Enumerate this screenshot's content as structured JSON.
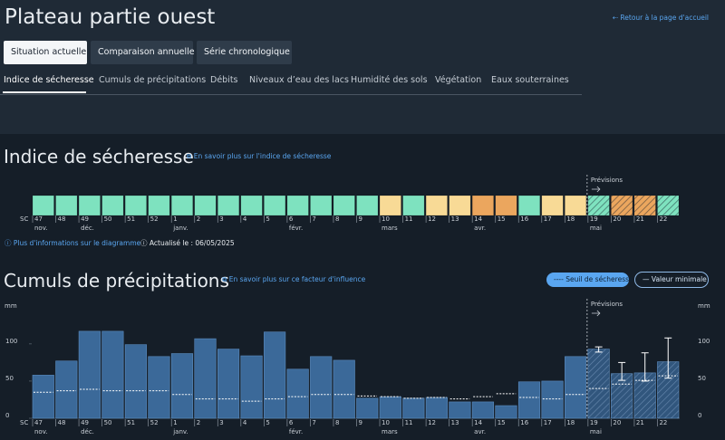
{
  "header": {
    "title": "Plateau partie ouest",
    "back_link": "Retour à la page d'accueil"
  },
  "view_tabs": [
    "Situation actuelle",
    "Comparaison annuelle",
    "Série chronologique"
  ],
  "topic_tabs": [
    "Indice de sécheresse",
    "Cumuls de précipitations",
    "Débits",
    "Niveaux d’eau des lacs",
    "Humidité des sols",
    "Végétation",
    "Eaux souterraines"
  ],
  "info": {
    "more_info": "Plus d'informations sur le diagramme",
    "updated_label": "Actualisé le :",
    "updated_date": "06/05/2025"
  },
  "chart_data": [
    {
      "type": "strip",
      "title": "Indice de sécheresse",
      "link": "En savoir plus sur l'indice de sécheresse",
      "x_label": "SC",
      "forecast_label": "Prévisions",
      "forecast_from": "19",
      "categories": [
        "47",
        "48",
        "49",
        "50",
        "51",
        "52",
        "1",
        "2",
        "3",
        "4",
        "5",
        "6",
        "7",
        "8",
        "9",
        "10",
        "11",
        "12",
        "13",
        "14",
        "15",
        "16",
        "17",
        "18",
        "19",
        "20",
        "21",
        "22"
      ],
      "month_labels": [
        "nov.",
        null,
        "déc.",
        null,
        null,
        null,
        "janv.",
        null,
        null,
        null,
        null,
        "févr.",
        null,
        null,
        null,
        "mars",
        null,
        null,
        null,
        "avr.",
        null,
        null,
        null,
        null,
        "mai",
        null,
        null,
        null
      ],
      "colors": [
        "#7ee2bf",
        "#7ee2bf",
        "#7ee2bf",
        "#7ee2bf",
        "#7ee2bf",
        "#7ee2bf",
        "#7ee2bf",
        "#7ee2bf",
        "#7ee2bf",
        "#7ee2bf",
        "#7ee2bf",
        "#7ee2bf",
        "#7ee2bf",
        "#7ee2bf",
        "#7ee2bf",
        "#f8da96",
        "#7ee2bf",
        "#f8da96",
        "#f8da96",
        "#eba65e",
        "#eba65e",
        "#7ee2bf",
        "#f8da96",
        "#f8da96",
        "#7ee2bf",
        "#eba65e",
        "#eba65e",
        "#7ee2bf"
      ]
    },
    {
      "type": "bar",
      "title": "Cumuls de précipitations",
      "link": "En savoir plus sur ce facteur d'influence",
      "x_label": "SC",
      "y_label": "mm",
      "forecast_label": "Prévisions",
      "forecast_from": "19",
      "categories": [
        "47",
        "48",
        "49",
        "50",
        "51",
        "52",
        "1",
        "2",
        "3",
        "4",
        "5",
        "6",
        "7",
        "8",
        "9",
        "10",
        "11",
        "12",
        "13",
        "14",
        "15",
        "16",
        "17",
        "18",
        "19",
        "20",
        "21",
        "22"
      ],
      "month_labels": [
        "nov.",
        null,
        "déc.",
        null,
        null,
        null,
        "janv.",
        null,
        null,
        null,
        null,
        "févr.",
        null,
        null,
        null,
        "mars",
        null,
        null,
        null,
        "avr.",
        null,
        null,
        null,
        null,
        "mai",
        null,
        null,
        null
      ],
      "color": "#3b6999",
      "values": [
        58,
        77,
        117,
        117,
        99,
        83,
        87,
        107,
        93,
        84,
        116,
        66,
        83,
        78,
        27,
        29,
        27,
        28,
        22,
        22,
        17,
        49,
        50,
        83,
        93,
        60,
        61,
        76
      ],
      "errors": [
        null,
        null,
        null,
        null,
        null,
        null,
        null,
        null,
        null,
        null,
        null,
        null,
        null,
        null,
        null,
        null,
        null,
        null,
        null,
        null,
        null,
        null,
        null,
        null,
        [
          89,
          96
        ],
        [
          51,
          75
        ],
        [
          50,
          88
        ],
        [
          54,
          108
        ]
      ],
      "threshold": {
        "name": "Seuil de sécheresse",
        "values": [
          35,
          37,
          39,
          37,
          37,
          37,
          32,
          26,
          26,
          23,
          26,
          29,
          32,
          32,
          30,
          29,
          27,
          28,
          26,
          29,
          33,
          28,
          26,
          32,
          40,
          46,
          51,
          57
        ]
      },
      "minimum": {
        "name": "Valeur minimale"
      },
      "ylim": [
        0,
        140
      ],
      "yticks": [
        0,
        50,
        100
      ]
    }
  ]
}
